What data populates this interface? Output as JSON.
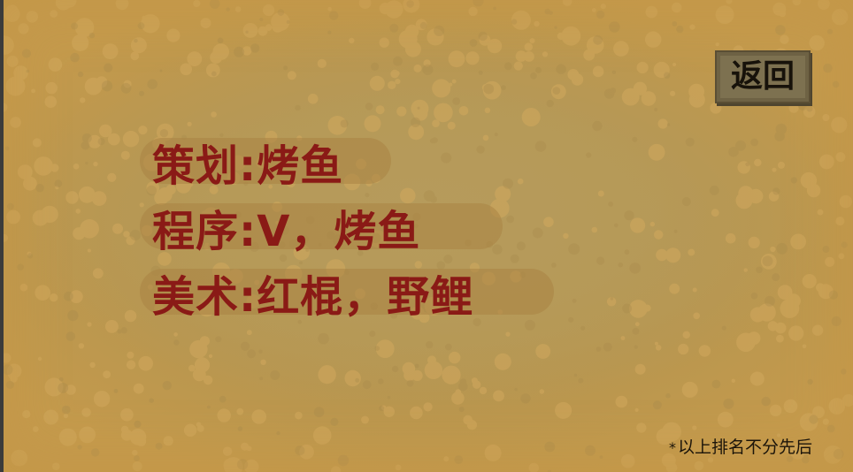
{
  "screen": {
    "back_label": "返回",
    "credits": [
      {
        "role": "策划:",
        "names": "烤鱼"
      },
      {
        "role": "程序:",
        "names": "V，烤鱼"
      },
      {
        "role": "美术:",
        "names": "红棍，野鲤"
      }
    ],
    "footnote": "以上排名不分先后",
    "footnote_marker": "*"
  },
  "colors": {
    "parchment": "#b39955",
    "credit_text": "#8a1a16",
    "button_bg": "#7d7150",
    "footnote_text": "#1b140a"
  }
}
